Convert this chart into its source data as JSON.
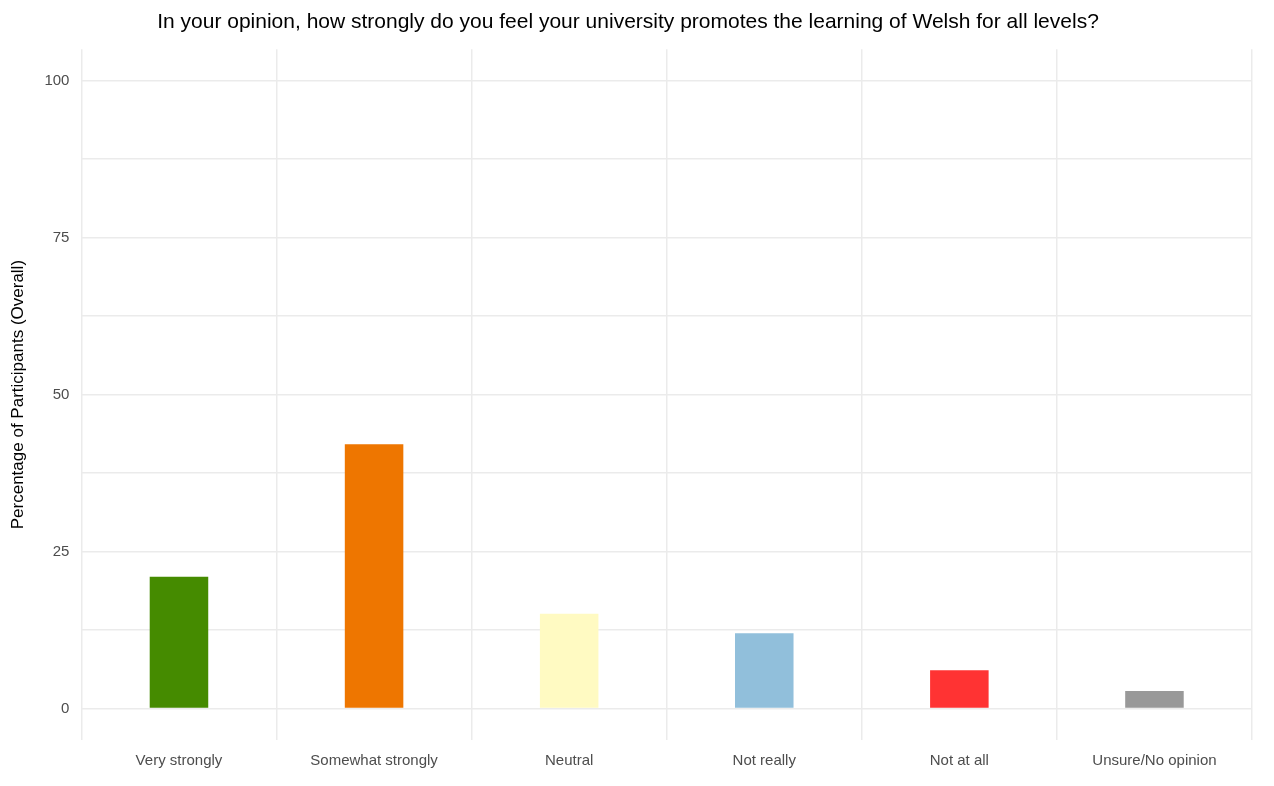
{
  "chart_data": {
    "type": "bar",
    "title": "In your opinion, how strongly do you feel your university promotes the learning of Welsh for all levels?",
    "ylabel": "Percentage of Participants (Overall)",
    "categories": [
      "Very strongly",
      "Somewhat strongly",
      "Neutral",
      "Not really",
      "Not at all",
      "Unsure/No opinion"
    ],
    "values": [
      21,
      42.1,
      15.1,
      12,
      6.1,
      2.8
    ],
    "colors": [
      "#458b00",
      "#ee7600",
      "#fffac2",
      "#91bfdb",
      "#ff3333",
      "#999999"
    ],
    "ylim": [
      -5,
      105
    ],
    "yticks": [
      0,
      {
        "value": 12.5,
        "label": null
      },
      25,
      {
        "value": 37.5,
        "label": null
      },
      50,
      {
        "value": 62.5,
        "label": null
      },
      75,
      {
        "value": 87.5,
        "label": null
      },
      100
    ],
    "grid": true,
    "legend": false
  }
}
